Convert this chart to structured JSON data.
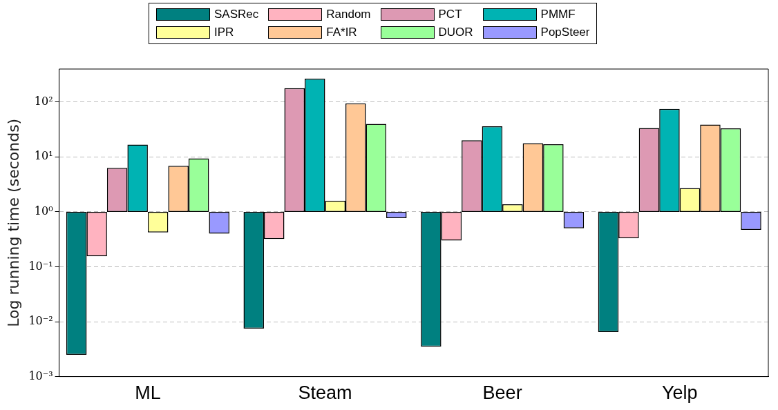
{
  "chart_data": {
    "type": "bar",
    "ylabel": "Log running time (seconds)",
    "log": true,
    "grid": "y",
    "legend": "top",
    "categories": [
      "ML",
      "Steam",
      "Beer",
      "Yelp"
    ],
    "ylim": [
      0.001,
      398
    ],
    "yticks": [
      {
        "value": 0.001,
        "label": "10⁻³"
      },
      {
        "value": 0.01,
        "label": "10⁻²"
      },
      {
        "value": 0.1,
        "label": "10⁻¹"
      },
      {
        "value": 1,
        "label": "10⁰"
      },
      {
        "value": 10,
        "label": "10¹"
      },
      {
        "value": 100,
        "label": "10²"
      }
    ],
    "series": [
      {
        "name": "SASRec",
        "color": "#008080",
        "base": [
          1,
          1,
          1,
          1
        ],
        "values": [
          -0.9975,
          -0.9925,
          -0.9965,
          -0.9935
        ]
      },
      {
        "name": "Random",
        "color": "#ffb3c0",
        "base": [
          1,
          1,
          1,
          1
        ],
        "values": [
          -0.845,
          -0.68,
          -0.7,
          -0.67
        ]
      },
      {
        "name": "PCT",
        "color": "#dd99b3",
        "base": [
          1,
          1,
          1,
          1
        ],
        "values": [
          5.3,
          177,
          19,
          32.5
        ]
      },
      {
        "name": "PMMF",
        "color": "#00b3b3",
        "base": [
          1,
          1,
          1,
          1
        ],
        "values": [
          15.8,
          265,
          35,
          74
        ]
      },
      {
        "name": "IPR",
        "color": "#ffff99",
        "base": [
          1,
          1,
          1,
          1
        ],
        "values": [
          -0.58,
          0.6,
          0.37,
          1.7
        ]
      },
      {
        "name": "FA*IR",
        "color": "#ffc896",
        "base": [
          1,
          1,
          1,
          1
        ],
        "values": [
          5.9,
          93,
          16.8,
          37.8
        ]
      },
      {
        "name": "DUOR",
        "color": "#99ff99",
        "base": [
          1,
          1,
          1,
          1
        ],
        "values": [
          8.4,
          39,
          16,
          32
        ]
      },
      {
        "name": "PopSteer",
        "color": "#9999ff",
        "base": [
          1,
          1,
          1,
          1
        ],
        "values": [
          -0.6,
          -0.23,
          -0.5,
          -0.53
        ]
      }
    ]
  }
}
